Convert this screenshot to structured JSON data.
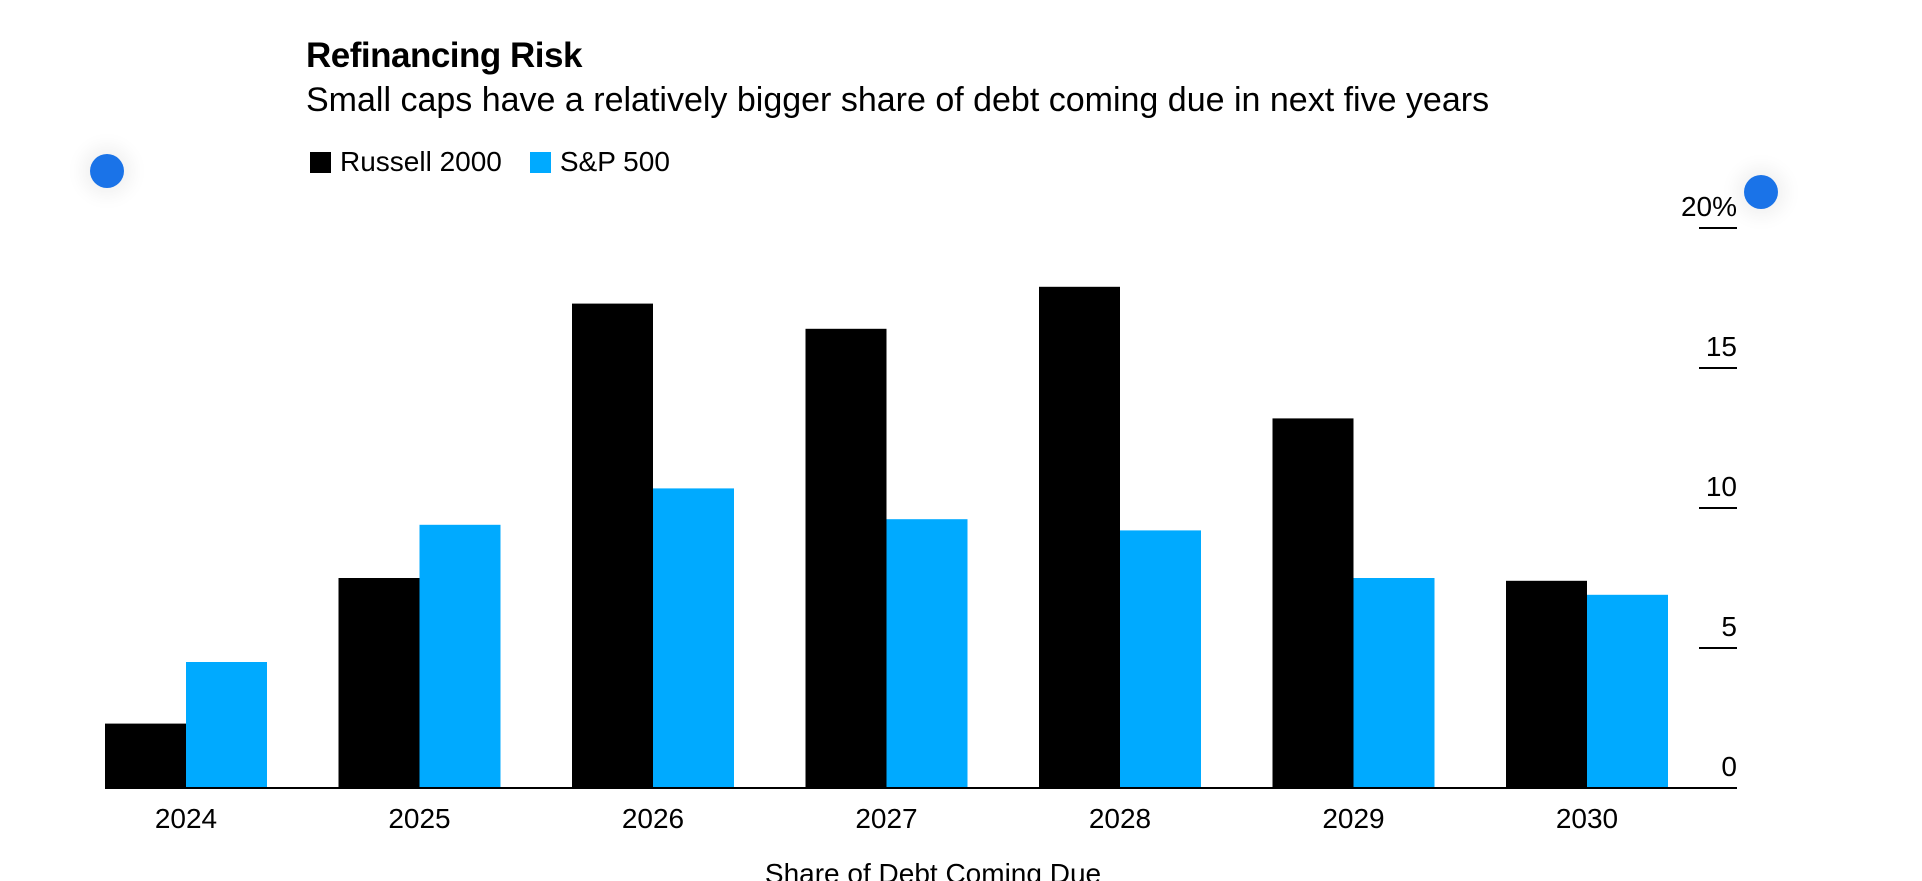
{
  "title": "Refinancing Risk",
  "subtitle": "Small caps have a relatively bigger share of debt coming due in next five years",
  "legend": [
    {
      "label": "Russell 2000",
      "color": "#000000"
    },
    {
      "label": "S&P 500",
      "color": "#00aaff"
    }
  ],
  "handles": {
    "left": "drag-handle",
    "right": "drag-handle"
  },
  "chart_data": {
    "type": "bar",
    "title": "Refinancing Risk",
    "subtitle": "Small caps have a relatively bigger share of debt coming due in next five years",
    "xlabel": "Share of Debt Coming Due",
    "ylabel": "",
    "categories": [
      "2024",
      "2025",
      "2026",
      "2027",
      "2028",
      "2029",
      "2030"
    ],
    "series": [
      {
        "name": "Russell 2000",
        "color": "#000000",
        "values": [
          2.3,
          7.5,
          17.3,
          16.4,
          17.9,
          13.2,
          7.4
        ]
      },
      {
        "name": "S&P 500",
        "color": "#00aaff",
        "values": [
          4.5,
          9.4,
          10.7,
          9.6,
          9.2,
          7.5,
          6.9
        ]
      }
    ],
    "ylim": [
      0,
      20
    ],
    "yticks": [
      {
        "value": 0,
        "label": "0"
      },
      {
        "value": 5,
        "label": "5"
      },
      {
        "value": 10,
        "label": "10"
      },
      {
        "value": 15,
        "label": "15"
      },
      {
        "value": 20,
        "label": "20%"
      }
    ],
    "y_axis_position": "right",
    "grid": false,
    "legend_position": "top-left"
  }
}
